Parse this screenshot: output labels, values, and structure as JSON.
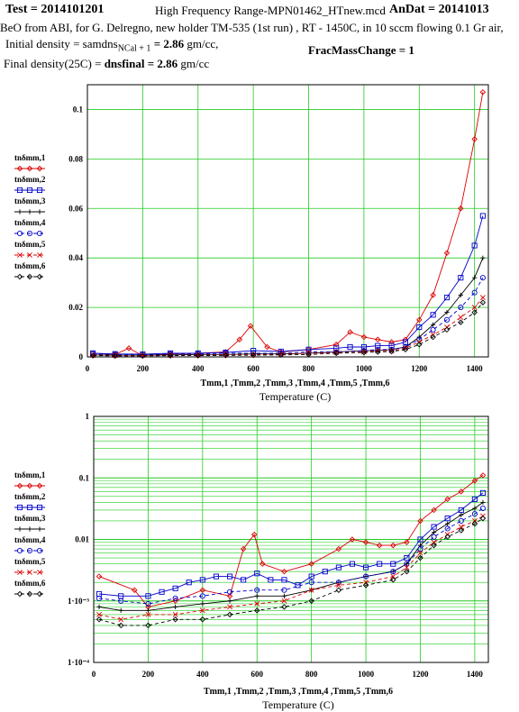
{
  "header": {
    "test": "Test = 2014101201",
    "file_title": "High Frequency Range-MPN01462_HTnew.mcd",
    "andat": "AnDat = 20141013",
    "description": "BeO from ABI, for G. Delregno, new holder TM-535 (1st run) , RT - 1450C, in 10 sccm flowing 0.1 Gr air,",
    "initial_density_label": "Initial density = samdns",
    "initial_density_sub": "NCal + 1",
    "initial_density_value": "= 2.86",
    "initial_density_unit": "gm/cc,",
    "final_density_label": "Final density(25C) =",
    "final_density_value": "dnsfinal = 2.86",
    "final_density_unit": "gm/cc",
    "frac_mass_change": "FracMassChange = 1"
  },
  "chart_data": [
    {
      "type": "line",
      "scale": "linear",
      "xlabel": "Temperature (C)",
      "xvars": "Tmm,1 ,Tmm,2 ,Tmm,3 ,Tmm,4 ,Tmm,5 ,Tmm,6",
      "xticks": [
        0,
        200,
        400,
        600,
        800,
        1000,
        1200,
        1400
      ],
      "yticks": [
        0,
        0.02,
        0.04,
        0.06,
        0.08,
        0.1
      ],
      "ytick_labels": [
        "0",
        "0.02",
        "0.04",
        "0.06",
        "0.08",
        "0.1"
      ],
      "xlim": [
        0,
        1450
      ],
      "ylim": [
        0,
        0.11
      ],
      "grid": true,
      "legend_position": "left",
      "series": [
        {
          "name": "tnδmm,1",
          "color": "#dd0000",
          "marker": "diamond",
          "dash": "",
          "x": [
            20,
            100,
            150,
            200,
            300,
            400,
            500,
            550,
            590,
            650,
            700,
            800,
            900,
            950,
            1000,
            1050,
            1100,
            1150,
            1200,
            1250,
            1300,
            1350,
            1400,
            1430
          ],
          "y": [
            0.0015,
            0.001,
            0.0035,
            0.0005,
            0.0012,
            0.0015,
            0.002,
            0.007,
            0.0125,
            0.004,
            0.002,
            0.003,
            0.005,
            0.01,
            0.008,
            0.007,
            0.006,
            0.007,
            0.015,
            0.025,
            0.042,
            0.06,
            0.088,
            0.107
          ]
        },
        {
          "name": "tnδmm,2",
          "color": "#0000cc",
          "marker": "square",
          "dash": "",
          "x": [
            20,
            100,
            200,
            300,
            400,
            500,
            600,
            700,
            800,
            900,
            950,
            1000,
            1050,
            1100,
            1150,
            1200,
            1250,
            1300,
            1350,
            1400,
            1430
          ],
          "y": [
            0.0015,
            0.0012,
            0.0011,
            0.0015,
            0.0015,
            0.0018,
            0.0025,
            0.0022,
            0.003,
            0.0035,
            0.004,
            0.004,
            0.0045,
            0.0045,
            0.006,
            0.012,
            0.017,
            0.024,
            0.032,
            0.045,
            0.057
          ]
        },
        {
          "name": "tnδmm,3",
          "color": "#000000",
          "marker": "plus",
          "dash": "",
          "x": [
            20,
            100,
            200,
            300,
            400,
            500,
            600,
            700,
            800,
            900,
            1000,
            1050,
            1100,
            1150,
            1200,
            1250,
            1300,
            1350,
            1400,
            1430
          ],
          "y": [
            0.0008,
            0.0007,
            0.0007,
            0.0008,
            0.001,
            0.001,
            0.0012,
            0.0012,
            0.0015,
            0.002,
            0.0025,
            0.0025,
            0.003,
            0.004,
            0.008,
            0.013,
            0.018,
            0.025,
            0.032,
            0.04
          ]
        },
        {
          "name": "tnδmm,4",
          "color": "#0000cc",
          "marker": "circle",
          "dash": "4,3",
          "x": [
            20,
            100,
            200,
            300,
            400,
            500,
            600,
            700,
            800,
            900,
            1000,
            1050,
            1100,
            1150,
            1200,
            1250,
            1300,
            1350,
            1400,
            1430
          ],
          "y": [
            0.0012,
            0.001,
            0.0009,
            0.0012,
            0.0012,
            0.0015,
            0.0015,
            0.0015,
            0.002,
            0.002,
            0.0025,
            0.003,
            0.003,
            0.004,
            0.007,
            0.011,
            0.015,
            0.02,
            0.026,
            0.032
          ]
        },
        {
          "name": "tnδmm,5",
          "color": "#dd0000",
          "marker": "cross",
          "dash": "4,3",
          "x": [
            20,
            100,
            200,
            300,
            400,
            500,
            600,
            700,
            800,
            900,
            1000,
            1050,
            1100,
            1150,
            1200,
            1250,
            1300,
            1350,
            1400,
            1430
          ],
          "y": [
            0.0006,
            0.0005,
            0.0006,
            0.0006,
            0.0007,
            0.0008,
            0.0009,
            0.001,
            0.0015,
            0.0018,
            0.002,
            0.0025,
            0.0025,
            0.0035,
            0.006,
            0.009,
            0.012,
            0.016,
            0.02,
            0.024
          ]
        },
        {
          "name": "tnδmm,6",
          "color": "#000000",
          "marker": "diamond",
          "dash": "4,3",
          "x": [
            20,
            100,
            200,
            300,
            400,
            500,
            600,
            700,
            800,
            900,
            1000,
            1050,
            1100,
            1150,
            1200,
            1250,
            1300,
            1350,
            1400,
            1430
          ],
          "y": [
            0.0005,
            0.0004,
            0.0004,
            0.0005,
            0.0005,
            0.0006,
            0.0007,
            0.0008,
            0.001,
            0.0015,
            0.0018,
            0.002,
            0.0022,
            0.003,
            0.005,
            0.008,
            0.011,
            0.014,
            0.018,
            0.022
          ]
        }
      ]
    },
    {
      "type": "line",
      "scale": "log",
      "xlabel": "Temperature (C)",
      "xvars": "Tmm,1 ,Tmm,2 ,Tmm,3 ,Tmm,4 ,Tmm,5 ,Tmm,6",
      "xticks": [
        0,
        200,
        400,
        600,
        800,
        1000,
        1200,
        1400
      ],
      "yticks": [
        0.0001,
        0.001,
        0.01,
        0.1,
        1
      ],
      "ytick_labels": [
        "1·10⁻⁴",
        "1·10⁻³",
        "0.01",
        "0.1",
        "1"
      ],
      "xlim": [
        0,
        1450
      ],
      "ylim": [
        0.0001,
        1
      ],
      "grid": true,
      "legend_position": "left",
      "series": [
        {
          "name": "tnδmm,1",
          "color": "#dd0000",
          "marker": "diamond",
          "dash": "",
          "x": [
            20,
            150,
            200,
            300,
            400,
            500,
            550,
            590,
            620,
            700,
            800,
            900,
            950,
            1000,
            1050,
            1100,
            1150,
            1200,
            1250,
            1300,
            1350,
            1400,
            1430
          ],
          "y": [
            0.0025,
            0.0015,
            0.0008,
            0.001,
            0.0015,
            0.0012,
            0.007,
            0.012,
            0.004,
            0.003,
            0.004,
            0.007,
            0.01,
            0.009,
            0.008,
            0.008,
            0.009,
            0.02,
            0.03,
            0.045,
            0.06,
            0.09,
            0.11
          ]
        },
        {
          "name": "tnδmm,2",
          "color": "#0000cc",
          "marker": "square",
          "dash": "",
          "x": [
            20,
            100,
            200,
            250,
            300,
            350,
            400,
            450,
            500,
            550,
            600,
            650,
            700,
            750,
            800,
            850,
            900,
            950,
            1000,
            1050,
            1100,
            1150,
            1200,
            1250,
            1300,
            1350,
            1400,
            1430
          ],
          "y": [
            0.0013,
            0.0012,
            0.0012,
            0.0014,
            0.0016,
            0.002,
            0.0022,
            0.0025,
            0.0025,
            0.0022,
            0.0028,
            0.0022,
            0.0022,
            0.0018,
            0.0025,
            0.003,
            0.0035,
            0.004,
            0.0035,
            0.004,
            0.004,
            0.005,
            0.01,
            0.016,
            0.022,
            0.03,
            0.045,
            0.057
          ]
        },
        {
          "name": "tnδmm,3",
          "color": "#000000",
          "marker": "plus",
          "dash": "",
          "x": [
            20,
            100,
            200,
            300,
            400,
            500,
            600,
            700,
            800,
            900,
            1000,
            1100,
            1150,
            1200,
            1250,
            1300,
            1350,
            1400,
            1430
          ],
          "y": [
            0.0008,
            0.0007,
            0.0007,
            0.0008,
            0.0009,
            0.001,
            0.0012,
            0.0012,
            0.0015,
            0.002,
            0.0025,
            0.003,
            0.004,
            0.008,
            0.013,
            0.018,
            0.025,
            0.032,
            0.04
          ]
        },
        {
          "name": "tnδmm,4",
          "color": "#0000cc",
          "marker": "circle",
          "dash": "4,3",
          "x": [
            20,
            100,
            200,
            300,
            400,
            500,
            600,
            700,
            800,
            900,
            1000,
            1100,
            1150,
            1200,
            1250,
            1300,
            1350,
            1400,
            1430
          ],
          "y": [
            0.0011,
            0.001,
            0.0009,
            0.0011,
            0.0012,
            0.0014,
            0.0015,
            0.0015,
            0.002,
            0.002,
            0.0025,
            0.003,
            0.004,
            0.007,
            0.011,
            0.015,
            0.02,
            0.026,
            0.032
          ]
        },
        {
          "name": "tnδmm,5",
          "color": "#dd0000",
          "marker": "cross",
          "dash": "4,3",
          "x": [
            20,
            100,
            200,
            300,
            400,
            500,
            600,
            700,
            800,
            900,
            1000,
            1100,
            1150,
            1200,
            1250,
            1300,
            1350,
            1400,
            1430
          ],
          "y": [
            0.0006,
            0.0005,
            0.0006,
            0.0006,
            0.0007,
            0.0008,
            0.0009,
            0.001,
            0.0015,
            0.0018,
            0.002,
            0.0025,
            0.0035,
            0.006,
            0.009,
            0.012,
            0.016,
            0.02,
            0.024
          ]
        },
        {
          "name": "tnδmm,6",
          "color": "#000000",
          "marker": "diamond",
          "dash": "4,3",
          "x": [
            20,
            100,
            200,
            300,
            400,
            500,
            600,
            700,
            800,
            900,
            1000,
            1100,
            1150,
            1200,
            1250,
            1300,
            1350,
            1400,
            1430
          ],
          "y": [
            0.0005,
            0.0004,
            0.0004,
            0.0005,
            0.0005,
            0.0006,
            0.0007,
            0.0008,
            0.001,
            0.0015,
            0.0018,
            0.0022,
            0.003,
            0.005,
            0.008,
            0.011,
            0.014,
            0.018,
            0.022
          ]
        }
      ]
    }
  ]
}
